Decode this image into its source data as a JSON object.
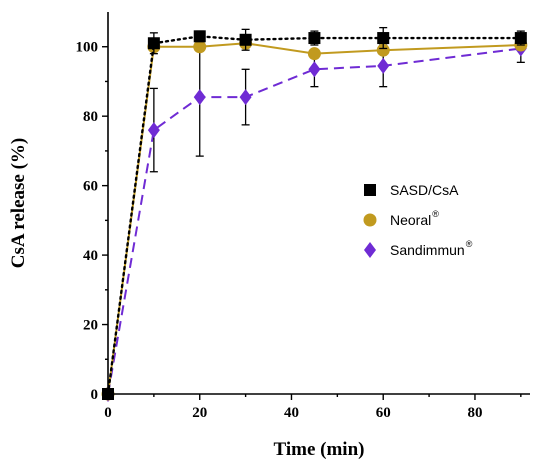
{
  "chart_data": {
    "type": "line",
    "title": "",
    "xlabel": "Time  (min)",
    "ylabel": "CsA release  (%)",
    "xlim": [
      0,
      92
    ],
    "ylim": [
      0,
      110
    ],
    "xticks": [
      0,
      20,
      40,
      60,
      80
    ],
    "yticks": [
      0,
      20,
      40,
      60,
      80,
      100
    ],
    "grid": false,
    "legend_position": "right",
    "series": [
      {
        "name": "SASD/CsA",
        "sup": "",
        "color": "#000000",
        "marker": "square",
        "line_style": "dotted",
        "x": [
          0,
          10,
          20,
          30,
          45,
          60,
          90
        ],
        "y": [
          0,
          101,
          103,
          102,
          102.5,
          102.5,
          102.5
        ],
        "err": [
          0,
          3,
          1.5,
          3,
          2,
          3,
          2
        ]
      },
      {
        "name": "Neoral",
        "sup": "®",
        "color": "#c19a1f",
        "marker": "circle",
        "line_style": "solid",
        "x": [
          0,
          10,
          20,
          30,
          45,
          60,
          90
        ],
        "y": [
          0,
          100,
          100,
          101,
          98,
          99,
          100.5
        ],
        "err": [
          0,
          0,
          0,
          0,
          0,
          0,
          0
        ]
      },
      {
        "name": "Sandimmun",
        "sup": "®",
        "color": "#6f2bd4",
        "marker": "diamond",
        "line_style": "dashed",
        "x": [
          0,
          10,
          20,
          30,
          45,
          60,
          90
        ],
        "y": [
          0,
          76,
          85.5,
          85.5,
          93.5,
          94.5,
          99.5
        ],
        "err": [
          0,
          12,
          17,
          8,
          5,
          6,
          4
        ]
      }
    ]
  }
}
